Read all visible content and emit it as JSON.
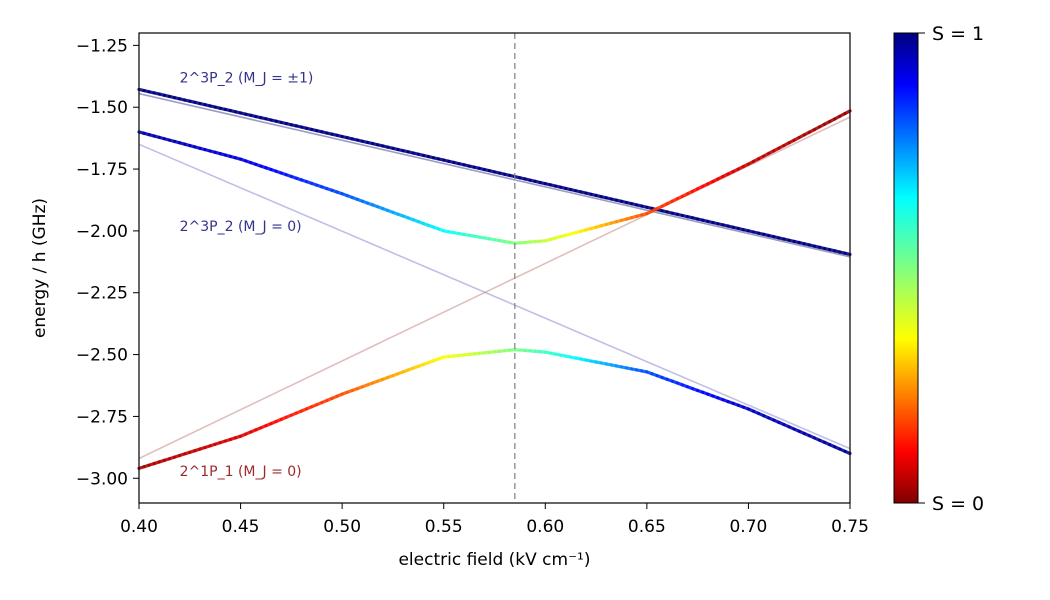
{
  "chart_data": {
    "type": "line",
    "xlabel": "electric field (kV cm⁻¹)",
    "ylabel": "energy / h (GHz)",
    "xlim": [
      0.4,
      0.75
    ],
    "ylim": [
      -3.1,
      -1.2
    ],
    "xticks": [
      "0.40",
      "0.45",
      "0.50",
      "0.55",
      "0.60",
      "0.65",
      "0.70",
      "0.75"
    ],
    "yticks": [
      "−1.25",
      "−1.50",
      "−1.75",
      "−2.00",
      "−2.25",
      "−2.50",
      "−2.75",
      "−3.00"
    ],
    "crossing_marker_x": 0.585,
    "series": [
      {
        "kind": "faint",
        "color": "#4b4b8f",
        "x": [
          0.4,
          0.75
        ],
        "y": [
          -1.445,
          -2.105
        ]
      },
      {
        "kind": "faint",
        "color": "#8c8cd0",
        "x": [
          0.4,
          0.75
        ],
        "y": [
          -1.65,
          -2.88
        ]
      },
      {
        "kind": "faint",
        "color": "#c98a8a",
        "x": [
          0.4,
          0.75
        ],
        "y": [
          -2.92,
          -1.54
        ]
      },
      {
        "kind": "bold",
        "x": [
          0.4,
          0.75
        ],
        "y": [
          -1.428,
          -2.095
        ],
        "spin": [
          1,
          1
        ]
      },
      {
        "kind": "bold",
        "x": [
          0.4,
          0.45,
          0.5,
          0.55,
          0.585,
          0.6,
          0.65,
          0.7,
          0.75
        ],
        "y": [
          -1.6,
          -1.71,
          -1.85,
          -2.0,
          -2.05,
          -2.04,
          -1.93,
          -1.73,
          -1.515
        ],
        "spin": [
          0.97,
          0.92,
          0.82,
          0.65,
          0.5,
          0.42,
          0.18,
          0.06,
          0.02
        ]
      },
      {
        "kind": "bold",
        "x": [
          0.4,
          0.45,
          0.5,
          0.55,
          0.585,
          0.6,
          0.65,
          0.7,
          0.75
        ],
        "y": [
          -2.96,
          -2.83,
          -2.66,
          -2.51,
          -2.48,
          -2.49,
          -2.57,
          -2.72,
          -2.9
        ],
        "spin": [
          0.03,
          0.08,
          0.18,
          0.35,
          0.5,
          0.58,
          0.82,
          0.94,
          0.98
        ]
      }
    ],
    "annotations": [
      {
        "label_html": "2<tspan baseline-shift='super' font-size='10'>3</tspan><tspan font-style='italic'>P</tspan><tspan baseline-shift='sub' font-size='10'>2</tspan> (<tspan font-style='italic'>M</tspan><tspan baseline-shift='sub' font-size='10' font-style='italic'>J</tspan> = ±1)",
        "text": "2^3P_2 (M_J = ±1)",
        "x": 0.42,
        "y": -1.38,
        "color": "#33338f"
      },
      {
        "text": "2^3P_2 (M_J = 0)",
        "x": 0.42,
        "y": -1.98,
        "color": "#33338f"
      },
      {
        "text": "2^1P_1 (M_J = 0)",
        "x": 0.42,
        "y": -2.97,
        "color": "#9b2b2b"
      }
    ],
    "colorbar": {
      "top_label": "S = 1",
      "bottom_label": "S = 0",
      "colormap": "jet"
    }
  }
}
